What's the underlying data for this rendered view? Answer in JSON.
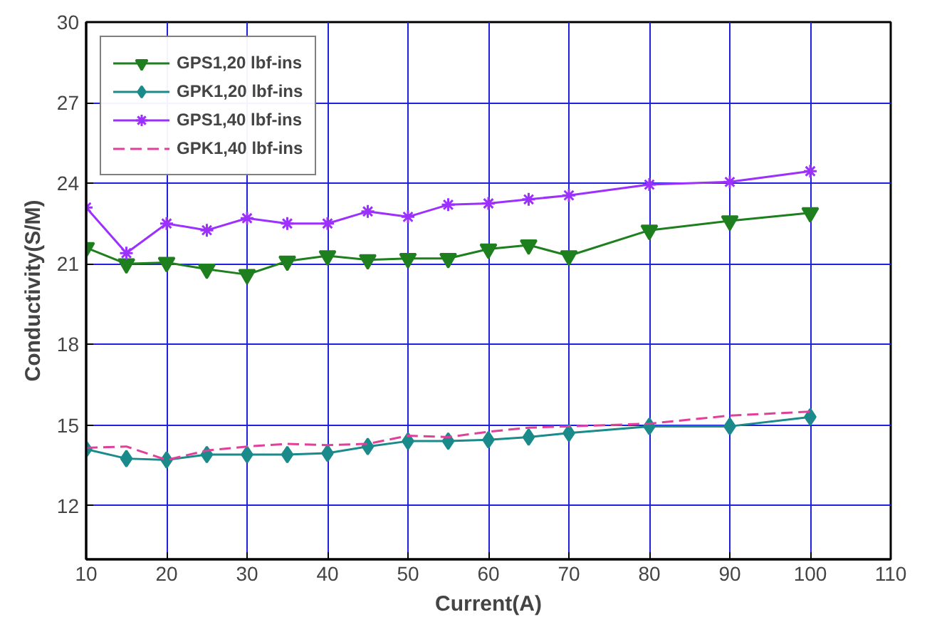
{
  "chart_data": {
    "type": "line",
    "xlabel": "Current(A)",
    "ylabel": "Conductivity(S/M)",
    "x": [
      10,
      15,
      20,
      25,
      30,
      35,
      40,
      45,
      50,
      55,
      60,
      65,
      70,
      80,
      90,
      100
    ],
    "xlim": [
      10,
      110
    ],
    "xticks": [
      10,
      20,
      30,
      40,
      50,
      60,
      70,
      80,
      90,
      100,
      110
    ],
    "ylim": [
      10,
      30
    ],
    "yticks": [
      12,
      15,
      18,
      21,
      24,
      27,
      30
    ],
    "grid": true,
    "legend": "top left",
    "series": [
      {
        "name": "GPS1,20 lbf-ins",
        "color": "#1e7f1e",
        "marker": "triangle",
        "line_style": "solid",
        "values": [
          21.6,
          21.0,
          21.05,
          20.8,
          20.6,
          21.1,
          21.3,
          21.15,
          21.2,
          21.2,
          21.55,
          21.7,
          21.3,
          22.25,
          22.6,
          22.9
        ]
      },
      {
        "name": "GPK1,20 lbf-ins",
        "color": "#1a8a8a",
        "marker": "diamond",
        "line_style": "solid",
        "values": [
          14.1,
          13.75,
          13.7,
          13.9,
          13.9,
          13.9,
          13.95,
          14.2,
          14.4,
          14.4,
          14.45,
          14.55,
          14.7,
          14.95,
          14.95,
          15.3
        ]
      },
      {
        "name": "GPS1,40 lbf-ins",
        "color": "#9b30ff",
        "marker": "cross",
        "line_style": "solid",
        "values": [
          23.1,
          21.4,
          22.5,
          22.25,
          22.7,
          22.5,
          22.5,
          22.95,
          22.75,
          23.2,
          23.25,
          23.4,
          23.55,
          23.95,
          24.05,
          24.45
        ]
      },
      {
        "name": "GPK1,40 lbf-ins",
        "color": "#e0409a",
        "marker": "none",
        "line_style": "dashed",
        "values": [
          14.15,
          14.2,
          13.7,
          14.05,
          14.2,
          14.3,
          14.25,
          14.3,
          14.6,
          14.55,
          14.75,
          14.9,
          14.95,
          15.05,
          15.35,
          15.5
        ]
      }
    ]
  }
}
